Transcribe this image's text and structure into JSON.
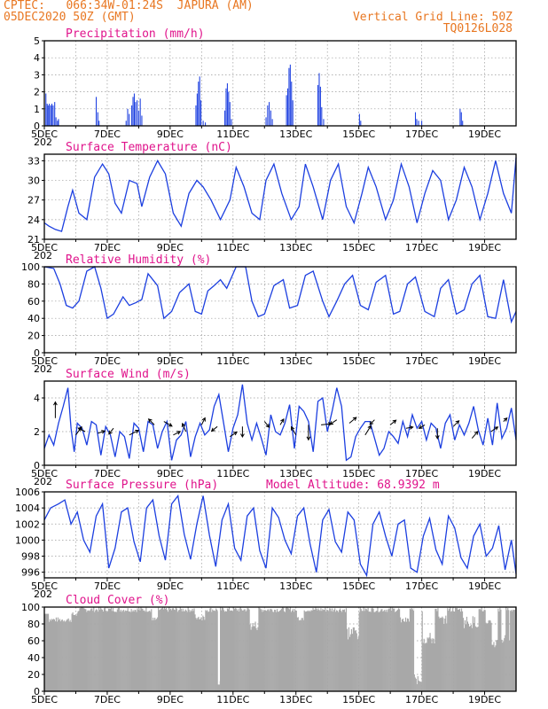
{
  "header": {
    "line1_left": "CPTEC:   066:34W-01:24S  JAPURA (AM)",
    "line2_left": "05DEC2020 50Z (GMT)",
    "line1_right": "Vertical Grid Line: 50Z",
    "line2_right": "TQ0126L028"
  },
  "x_labels": [
    "5DEC",
    "7DEC",
    "9DEC",
    "11DEC",
    "13DEC",
    "15DEC",
    "17DEC",
    "19DEC"
  ],
  "x_stub_label": "202",
  "colors": {
    "line": "#1c3fe0",
    "bars": "#1c3fe0",
    "cloud": "#a8a8a8",
    "title": "#e0148c",
    "header": "#e87722",
    "arrow": "#000000"
  },
  "chart_data": [
    {
      "type": "bar",
      "title": "Precipitation (mm/h)",
      "ylim": [
        0,
        5
      ],
      "yticks": [
        0,
        1,
        2,
        3,
        4,
        5
      ],
      "xlim": [
        0,
        15
      ],
      "values": [
        [
          0.05,
          1.9
        ],
        [
          0.09,
          1.3
        ],
        [
          0.12,
          1.2
        ],
        [
          0.16,
          1.3
        ],
        [
          0.2,
          1.2
        ],
        [
          0.24,
          1.3
        ],
        [
          0.28,
          1.2
        ],
        [
          0.33,
          1.4
        ],
        [
          0.37,
          0.5
        ],
        [
          0.42,
          0.3
        ],
        [
          0.45,
          0.4
        ],
        [
          1.65,
          1.7
        ],
        [
          1.7,
          0.8
        ],
        [
          1.74,
          0.3
        ],
        [
          2.6,
          0.3
        ],
        [
          2.65,
          1.0
        ],
        [
          2.7,
          0.7
        ],
        [
          2.78,
          1.2
        ],
        [
          2.82,
          1.7
        ],
        [
          2.86,
          1.9
        ],
        [
          2.9,
          1.4
        ],
        [
          2.95,
          1.5
        ],
        [
          3.0,
          0.9
        ],
        [
          3.05,
          1.6
        ],
        [
          3.1,
          0.6
        ],
        [
          4.82,
          1.2
        ],
        [
          4.86,
          1.9
        ],
        [
          4.9,
          2.6
        ],
        [
          4.94,
          2.9
        ],
        [
          4.98,
          1.5
        ],
        [
          5.05,
          0.3
        ],
        [
          5.12,
          0.2
        ],
        [
          5.74,
          0.9
        ],
        [
          5.78,
          2.2
        ],
        [
          5.82,
          2.5
        ],
        [
          5.86,
          2.0
        ],
        [
          5.9,
          1.4
        ],
        [
          5.95,
          0.4
        ],
        [
          7.05,
          0.5
        ],
        [
          7.1,
          1.2
        ],
        [
          7.15,
          1.4
        ],
        [
          7.2,
          0.9
        ],
        [
          7.25,
          0.4
        ],
        [
          7.7,
          1.8
        ],
        [
          7.74,
          2.2
        ],
        [
          7.78,
          3.4
        ],
        [
          7.82,
          3.6
        ],
        [
          7.86,
          2.6
        ],
        [
          7.9,
          1.5
        ],
        [
          8.7,
          2.4
        ],
        [
          8.74,
          3.1
        ],
        [
          8.78,
          2.3
        ],
        [
          8.82,
          1.1
        ],
        [
          8.88,
          0.4
        ],
        [
          10.02,
          0.7
        ],
        [
          10.06,
          0.3
        ],
        [
          11.8,
          0.8
        ],
        [
          11.84,
          0.4
        ],
        [
          11.9,
          0.3
        ],
        [
          12.0,
          0.3
        ],
        [
          13.22,
          1.0
        ],
        [
          13.26,
          0.8
        ],
        [
          13.3,
          0.3
        ]
      ]
    },
    {
      "type": "line",
      "title": "Surface Temperature (nC)",
      "ylim": [
        21,
        34
      ],
      "yticks": [
        21,
        24,
        27,
        30,
        33
      ],
      "xlim": [
        0,
        15
      ],
      "x": [
        0,
        0.15,
        0.35,
        0.55,
        0.75,
        0.9,
        1.1,
        1.35,
        1.6,
        1.85,
        2.05,
        2.25,
        2.45,
        2.7,
        2.95,
        3.1,
        3.35,
        3.6,
        3.85,
        4.1,
        4.35,
        4.6,
        4.85,
        5.05,
        5.3,
        5.6,
        5.9,
        6.1,
        6.35,
        6.6,
        6.85,
        7.05,
        7.3,
        7.55,
        7.85,
        8.1,
        8.3,
        8.55,
        8.85,
        9.1,
        9.35,
        9.6,
        9.85,
        10.1,
        10.3,
        10.55,
        10.85,
        11.1,
        11.35,
        11.6,
        11.85,
        12.1,
        12.35,
        12.6,
        12.85,
        13.1,
        13.35,
        13.6,
        13.85,
        14.1,
        14.35,
        14.6,
        14.85,
        15.0
      ],
      "y": [
        23.5,
        23,
        22.5,
        22.2,
        26,
        28.5,
        25,
        24,
        30.5,
        32.5,
        31,
        26.5,
        25,
        30,
        29.5,
        26,
        30.5,
        33,
        31,
        25,
        23,
        28,
        30,
        29,
        27,
        24,
        27,
        32,
        29,
        25,
        24,
        30,
        32.5,
        28,
        24,
        26,
        32.5,
        29,
        24,
        30,
        32.5,
        26,
        23.5,
        28,
        32,
        29,
        24,
        27,
        32.5,
        29,
        23.5,
        28,
        31.5,
        30,
        24,
        27,
        32,
        29,
        24,
        28,
        33,
        28,
        25,
        33.5
      ]
    },
    {
      "type": "line",
      "title": "Relative Humidity (%)",
      "ylim": [
        0,
        100
      ],
      "yticks": [
        0,
        20,
        40,
        60,
        80,
        100
      ],
      "xlim": [
        0,
        15
      ],
      "x": [
        0,
        0.3,
        0.5,
        0.7,
        0.9,
        1.1,
        1.35,
        1.6,
        1.8,
        2.0,
        2.2,
        2.5,
        2.7,
        2.9,
        3.1,
        3.3,
        3.6,
        3.8,
        4.05,
        4.3,
        4.6,
        4.8,
        5.0,
        5.2,
        5.4,
        5.6,
        5.8,
        6.1,
        6.4,
        6.6,
        6.8,
        7.0,
        7.3,
        7.6,
        7.8,
        8.05,
        8.3,
        8.55,
        8.85,
        9.05,
        9.3,
        9.55,
        9.8,
        10.05,
        10.3,
        10.55,
        10.85,
        11.1,
        11.3,
        11.55,
        11.8,
        12.1,
        12.4,
        12.6,
        12.85,
        13.1,
        13.35,
        13.6,
        13.85,
        14.1,
        14.35,
        14.6,
        14.85,
        15.0
      ],
      "y": [
        100,
        98,
        80,
        55,
        52,
        60,
        95,
        100,
        75,
        40,
        45,
        65,
        55,
        58,
        62,
        92,
        78,
        40,
        48,
        70,
        80,
        48,
        45,
        72,
        78,
        85,
        75,
        100,
        100,
        60,
        42,
        45,
        78,
        85,
        52,
        55,
        90,
        95,
        60,
        42,
        60,
        80,
        90,
        55,
        50,
        82,
        90,
        45,
        48,
        80,
        88,
        48,
        42,
        75,
        85,
        45,
        50,
        80,
        90,
        42,
        40,
        85,
        36,
        48
      ]
    },
    {
      "type": "line",
      "title": "Surface Wind (m/s)",
      "ylim": [
        0,
        5
      ],
      "yticks": [
        0,
        2,
        4
      ],
      "xlim": [
        0,
        15
      ],
      "x": [
        0,
        0.15,
        0.3,
        0.45,
        0.6,
        0.75,
        0.85,
        0.95,
        1.05,
        1.2,
        1.35,
        1.5,
        1.65,
        1.8,
        1.95,
        2.1,
        2.25,
        2.4,
        2.55,
        2.7,
        2.85,
        3.0,
        3.15,
        3.3,
        3.45,
        3.6,
        3.75,
        3.9,
        4.05,
        4.2,
        4.35,
        4.5,
        4.65,
        4.8,
        4.95,
        5.1,
        5.25,
        5.4,
        5.55,
        5.7,
        5.85,
        6.0,
        6.15,
        6.3,
        6.45,
        6.6,
        6.75,
        6.9,
        7.05,
        7.2,
        7.35,
        7.5,
        7.65,
        7.8,
        7.95,
        8.1,
        8.25,
        8.4,
        8.55,
        8.7,
        8.85,
        9.0,
        9.15,
        9.3,
        9.45,
        9.6,
        9.75,
        9.9,
        10.05,
        10.2,
        10.35,
        10.5,
        10.65,
        10.8,
        10.95,
        11.1,
        11.25,
        11.4,
        11.55,
        11.7,
        11.85,
        12.0,
        12.15,
        12.3,
        12.45,
        12.6,
        12.75,
        12.9,
        13.05,
        13.2,
        13.35,
        13.5,
        13.65,
        13.8,
        13.95,
        14.1,
        14.25,
        14.4,
        14.55,
        14.7,
        14.85,
        15.0
      ],
      "y": [
        1.0,
        1.8,
        1.2,
        2.5,
        3.5,
        4.6,
        2.2,
        0.8,
        2.5,
        2.2,
        1.2,
        2.6,
        2.4,
        0.6,
        2.3,
        1.8,
        0.5,
        2.0,
        1.7,
        0.4,
        2.5,
        2.2,
        0.8,
        2.6,
        2.4,
        1.0,
        2.0,
        2.6,
        0.3,
        1.5,
        1.8,
        2.6,
        0.5,
        1.7,
        2.5,
        1.8,
        2.1,
        3.5,
        4.2,
        2.5,
        0.8,
        2.2,
        3.0,
        4.8,
        2.5,
        1.5,
        2.5,
        1.6,
        0.6,
        3.0,
        2.0,
        1.8,
        2.5,
        3.6,
        1.0,
        3.5,
        3.2,
        2.6,
        0.8,
        3.8,
        4.0,
        2.0,
        3.2,
        4.6,
        3.5,
        0.3,
        0.5,
        1.7,
        2.2,
        2.6,
        2.6,
        1.6,
        0.6,
        1.0,
        2.0,
        1.7,
        1.3,
        2.6,
        1.7,
        3.0,
        2.2,
        2.6,
        1.5,
        2.5,
        2.2,
        1.0,
        2.5,
        3.0,
        1.5,
        2.4,
        1.8,
        2.5,
        3.5,
        2.1,
        1.2,
        2.8,
        1.2,
        3.7,
        1.6,
        2.2,
        3.4,
        1.5
      ],
      "arrows": [
        [
          0.35,
          2.8,
          0,
          1.4
        ],
        [
          1.0,
          1.8,
          0.5,
          0.7
        ],
        [
          1.3,
          2.0,
          -0.6,
          0.3
        ],
        [
          1.7,
          1.9,
          0.6,
          0.2
        ],
        [
          2.2,
          2.2,
          -0.4,
          -0.5
        ],
        [
          2.7,
          1.8,
          0.8,
          0.4
        ],
        [
          3.5,
          2.4,
          -0.5,
          0.5
        ],
        [
          3.8,
          2.6,
          0.7,
          -0.4
        ],
        [
          4.1,
          1.8,
          0.6,
          0.3
        ],
        [
          4.5,
          2.0,
          -0.3,
          0.7
        ],
        [
          5.0,
          2.4,
          0.3,
          0.6
        ],
        [
          5.5,
          2.3,
          -0.5,
          -0.4
        ],
        [
          5.9,
          1.7,
          0.6,
          0.4
        ],
        [
          6.3,
          2.3,
          0,
          -0.9
        ],
        [
          7.0,
          2.6,
          0.4,
          -0.5
        ],
        [
          7.5,
          2.4,
          0.3,
          0.5
        ],
        [
          8.0,
          1.8,
          -0.4,
          0.7
        ],
        [
          8.4,
          2.4,
          0,
          -1.3
        ],
        [
          8.8,
          2.4,
          0.9,
          0.1
        ],
        [
          9.3,
          2.7,
          -0.6,
          -0.4
        ],
        [
          9.7,
          2.5,
          0.6,
          0.5
        ],
        [
          10.2,
          1.8,
          0.5,
          0.8
        ],
        [
          10.5,
          2.7,
          -0.4,
          -0.4
        ],
        [
          11.0,
          2.4,
          0.5,
          0.4
        ],
        [
          11.5,
          2.2,
          0.6,
          0.1
        ],
        [
          12.1,
          2.4,
          -0.5,
          -0.3
        ],
        [
          12.5,
          2.2,
          0,
          -0.9
        ],
        [
          13.0,
          2.3,
          0.5,
          0.5
        ],
        [
          13.6,
          1.6,
          0.5,
          0.6
        ],
        [
          14.2,
          2.0,
          0.6,
          0.4
        ],
        [
          14.6,
          2.6,
          0.3,
          0.3
        ]
      ]
    },
    {
      "type": "line",
      "title": "Surface Pressure (hPa)",
      "subtitle": "Model Altitude: 68.9392 m",
      "ylim": [
        995.3,
        1006
      ],
      "yticks": [
        996,
        998,
        1000,
        1002,
        1004,
        1006
      ],
      "xlim": [
        0,
        15
      ],
      "x": [
        0,
        0.2,
        0.45,
        0.65,
        0.85,
        1.05,
        1.25,
        1.45,
        1.65,
        1.85,
        2.05,
        2.25,
        2.45,
        2.65,
        2.85,
        3.05,
        3.25,
        3.45,
        3.65,
        3.85,
        4.05,
        4.25,
        4.45,
        4.65,
        4.85,
        5.05,
        5.25,
        5.45,
        5.65,
        5.85,
        6.05,
        6.25,
        6.45,
        6.65,
        6.85,
        7.05,
        7.25,
        7.45,
        7.65,
        7.85,
        8.05,
        8.25,
        8.45,
        8.65,
        8.85,
        9.05,
        9.25,
        9.45,
        9.65,
        9.85,
        10.05,
        10.25,
        10.45,
        10.65,
        10.85,
        11.05,
        11.25,
        11.45,
        11.65,
        11.85,
        12.05,
        12.25,
        12.45,
        12.65,
        12.85,
        13.05,
        13.25,
        13.45,
        13.65,
        13.85,
        14.05,
        14.25,
        14.45,
        14.65,
        14.85,
        15.0
      ],
      "y": [
        1002.5,
        1004,
        1004.5,
        1005,
        1002,
        1003.5,
        1000,
        998.5,
        1003,
        1004.5,
        996.5,
        999,
        1003.5,
        1004,
        999.8,
        997.3,
        1004,
        1005,
        1000.5,
        997.5,
        1004.5,
        1005.5,
        1000.7,
        997.6,
        1002,
        1005.5,
        1000.6,
        996.7,
        1002.5,
        1004.5,
        999,
        997.5,
        1003,
        1004,
        998.7,
        996.5,
        1004,
        1002.8,
        1000,
        998.3,
        1003,
        1004,
        999.5,
        996,
        1002.5,
        1003.8,
        999.8,
        998.5,
        1003.5,
        1002.5,
        997,
        995.6,
        1002,
        1003.5,
        1000.5,
        998,
        1002,
        1002.5,
        996.5,
        996,
        1000.5,
        1002.7,
        998.8,
        997,
        1003,
        1001.5,
        997.8,
        996.5,
        1000.5,
        1002,
        998,
        999,
        1001.8,
        996.3,
        1000,
        995.8
      ]
    },
    {
      "type": "bar",
      "title": "Cloud Cover (%)",
      "ylim": [
        0,
        100
      ],
      "yticks": [
        0,
        20,
        40,
        60,
        80,
        100
      ],
      "xlim": [
        0,
        15
      ]
    }
  ]
}
